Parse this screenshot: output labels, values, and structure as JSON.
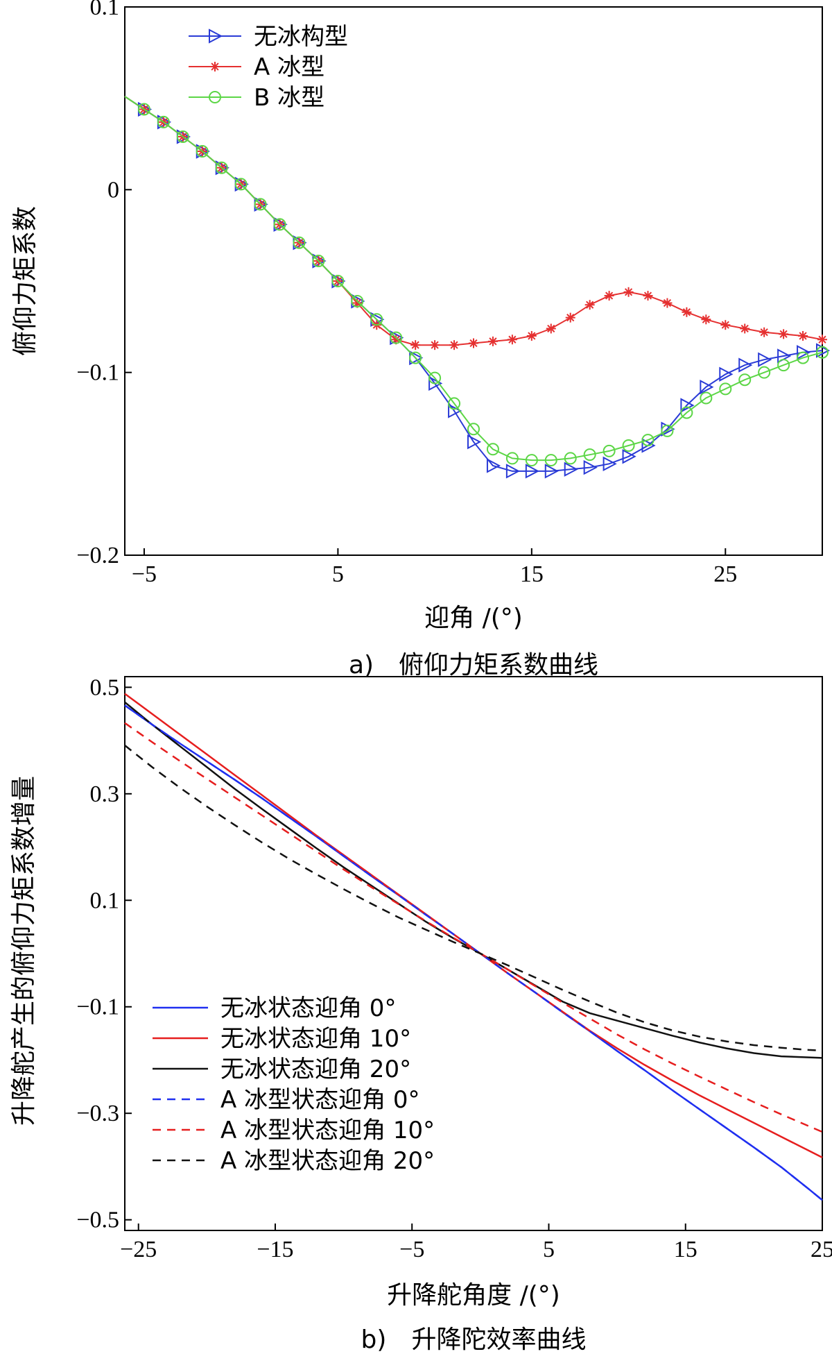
{
  "chart_data": [
    {
      "type": "line",
      "caption": "a)　俯仰力矩系数曲线",
      "xlabel": "迎角 /(°)",
      "ylabel": "俯仰力矩系数",
      "xlim": [
        -6,
        30
      ],
      "ylim": [
        -0.2,
        0.1
      ],
      "xticks": [
        -5,
        5,
        15,
        25
      ],
      "yticks": [
        0.1,
        0,
        -0.1,
        -0.2
      ],
      "ytick_labels": [
        "0.1",
        "0",
        "−0.1",
        "−0.2"
      ],
      "xtick_labels": [
        "−5",
        "5",
        "15",
        "25"
      ],
      "legend_position": "top-left",
      "grid": false,
      "x": [
        -6,
        -5,
        -4,
        -3,
        -2,
        -1,
        0,
        1,
        2,
        3,
        4,
        5,
        6,
        7,
        8,
        9,
        10,
        11,
        12,
        13,
        14,
        15,
        16,
        17,
        18,
        19,
        20,
        21,
        22,
        23,
        24,
        25,
        26,
        27,
        28,
        29,
        30
      ],
      "series": [
        {
          "name": "无冰构型",
          "color": "#2a3bd6",
          "marker": "triangle-right",
          "values": [
            0.051,
            0.044,
            0.037,
            0.029,
            0.021,
            0.012,
            0.003,
            -0.008,
            -0.019,
            -0.029,
            -0.039,
            -0.05,
            -0.061,
            -0.071,
            -0.081,
            -0.092,
            -0.106,
            -0.121,
            -0.138,
            -0.151,
            -0.154,
            -0.154,
            -0.154,
            -0.153,
            -0.152,
            -0.15,
            -0.146,
            -0.14,
            -0.131,
            -0.118,
            -0.108,
            -0.101,
            -0.096,
            -0.093,
            -0.091,
            -0.089,
            -0.088
          ]
        },
        {
          "name": "A 冰型",
          "color": "#e53030",
          "marker": "asterisk",
          "values": [
            0.051,
            0.044,
            0.037,
            0.029,
            0.021,
            0.012,
            0.003,
            -0.008,
            -0.019,
            -0.029,
            -0.039,
            -0.05,
            -0.062,
            -0.074,
            -0.082,
            -0.085,
            -0.085,
            -0.085,
            -0.084,
            -0.083,
            -0.082,
            -0.08,
            -0.076,
            -0.07,
            -0.063,
            -0.058,
            -0.056,
            -0.058,
            -0.062,
            -0.067,
            -0.071,
            -0.074,
            -0.076,
            -0.078,
            -0.079,
            -0.08,
            -0.082
          ]
        },
        {
          "name": "B 冰型",
          "color": "#5cd646",
          "marker": "circle",
          "values": [
            0.051,
            0.044,
            0.037,
            0.029,
            0.021,
            0.012,
            0.003,
            -0.008,
            -0.019,
            -0.029,
            -0.039,
            -0.05,
            -0.061,
            -0.071,
            -0.081,
            -0.092,
            -0.103,
            -0.117,
            -0.131,
            -0.142,
            -0.147,
            -0.148,
            -0.148,
            -0.147,
            -0.145,
            -0.143,
            -0.14,
            -0.137,
            -0.132,
            -0.122,
            -0.114,
            -0.109,
            -0.104,
            -0.1,
            -0.096,
            -0.092,
            -0.089
          ]
        }
      ]
    },
    {
      "type": "line",
      "caption": "b)　升降陀效率曲线",
      "xlabel": "升降舵角度 /(°)",
      "ylabel": "升降舵产生的俯仰力矩系数增量",
      "xlim": [
        -26,
        25
      ],
      "ylim": [
        -0.52,
        0.52
      ],
      "xticks": [
        -25,
        -15,
        -5,
        5,
        15,
        25
      ],
      "yticks": [
        0.5,
        0.3,
        0.1,
        -0.1,
        -0.3,
        -0.5
      ],
      "ytick_labels": [
        "0.5",
        "0.3",
        "0.1",
        "−0.1",
        "−0.3",
        "−0.5"
      ],
      "xtick_labels": [
        "−25",
        "−15",
        "−5",
        "5",
        "15",
        "25"
      ],
      "legend_position": "bottom-left",
      "grid": false,
      "x": [
        -26,
        -24,
        -22,
        -20,
        -18,
        -16,
        -14,
        -12,
        -10,
        -8,
        -6,
        -4,
        -2,
        0,
        2,
        4,
        6,
        8,
        10,
        12,
        14,
        16,
        18,
        20,
        22,
        24,
        25
      ],
      "series": [
        {
          "name": "无冰状态迎角 0°",
          "color": "#1f2ff0",
          "dash": "solid",
          "values": [
            0.466,
            0.43,
            0.395,
            0.361,
            0.327,
            0.292,
            0.256,
            0.22,
            0.183,
            0.146,
            0.11,
            0.073,
            0.037,
            0.0,
            -0.037,
            -0.073,
            -0.11,
            -0.146,
            -0.183,
            -0.219,
            -0.256,
            -0.292,
            -0.328,
            -0.364,
            -0.401,
            -0.442,
            -0.463
          ]
        },
        {
          "name": "无冰状态迎角 10°",
          "color": "#e61e1e",
          "dash": "solid",
          "values": [
            0.488,
            0.45,
            0.412,
            0.374,
            0.336,
            0.298,
            0.26,
            0.222,
            0.185,
            0.148,
            0.111,
            0.074,
            0.037,
            0.0,
            -0.037,
            -0.073,
            -0.109,
            -0.145,
            -0.178,
            -0.209,
            -0.238,
            -0.266,
            -0.292,
            -0.318,
            -0.344,
            -0.37,
            -0.383
          ]
        },
        {
          "name": "无冰状态迎角 20°",
          "color": "#111111",
          "dash": "solid",
          "values": [
            0.472,
            0.43,
            0.39,
            0.35,
            0.31,
            0.272,
            0.235,
            0.198,
            0.162,
            0.128,
            0.094,
            0.06,
            0.029,
            0.0,
            -0.03,
            -0.06,
            -0.09,
            -0.112,
            -0.126,
            -0.14,
            -0.154,
            -0.167,
            -0.178,
            -0.187,
            -0.193,
            -0.195,
            -0.196
          ]
        },
        {
          "name": "A 冰型状态迎角 0°",
          "color": "#1f2ff0",
          "dash": "dashed",
          "values": [
            0.466,
            0.43,
            0.395,
            0.361,
            0.327,
            0.292,
            0.256,
            0.22,
            0.183,
            0.146,
            0.11,
            0.073,
            0.037,
            0.0,
            -0.037,
            -0.073,
            -0.11,
            -0.146,
            -0.183,
            -0.219,
            -0.256,
            -0.292,
            -0.328,
            -0.364,
            -0.401,
            -0.442,
            -0.463
          ]
        },
        {
          "name": "A 冰型状态迎角 10°",
          "color": "#e61e1e",
          "dash": "dashed",
          "values": [
            0.433,
            0.397,
            0.362,
            0.328,
            0.294,
            0.26,
            0.226,
            0.192,
            0.158,
            0.125,
            0.093,
            0.061,
            0.03,
            0.0,
            -0.03,
            -0.061,
            -0.092,
            -0.122,
            -0.152,
            -0.18,
            -0.206,
            -0.231,
            -0.255,
            -0.279,
            -0.302,
            -0.324,
            -0.335
          ]
        },
        {
          "name": "A 冰型状态迎角 20°",
          "color": "#111111",
          "dash": "dashed",
          "values": [
            0.391,
            0.35,
            0.312,
            0.276,
            0.242,
            0.209,
            0.178,
            0.149,
            0.121,
            0.094,
            0.068,
            0.045,
            0.022,
            0.0,
            -0.022,
            -0.045,
            -0.068,
            -0.09,
            -0.111,
            -0.129,
            -0.144,
            -0.156,
            -0.165,
            -0.172,
            -0.177,
            -0.181,
            -0.182
          ]
        }
      ]
    }
  ]
}
